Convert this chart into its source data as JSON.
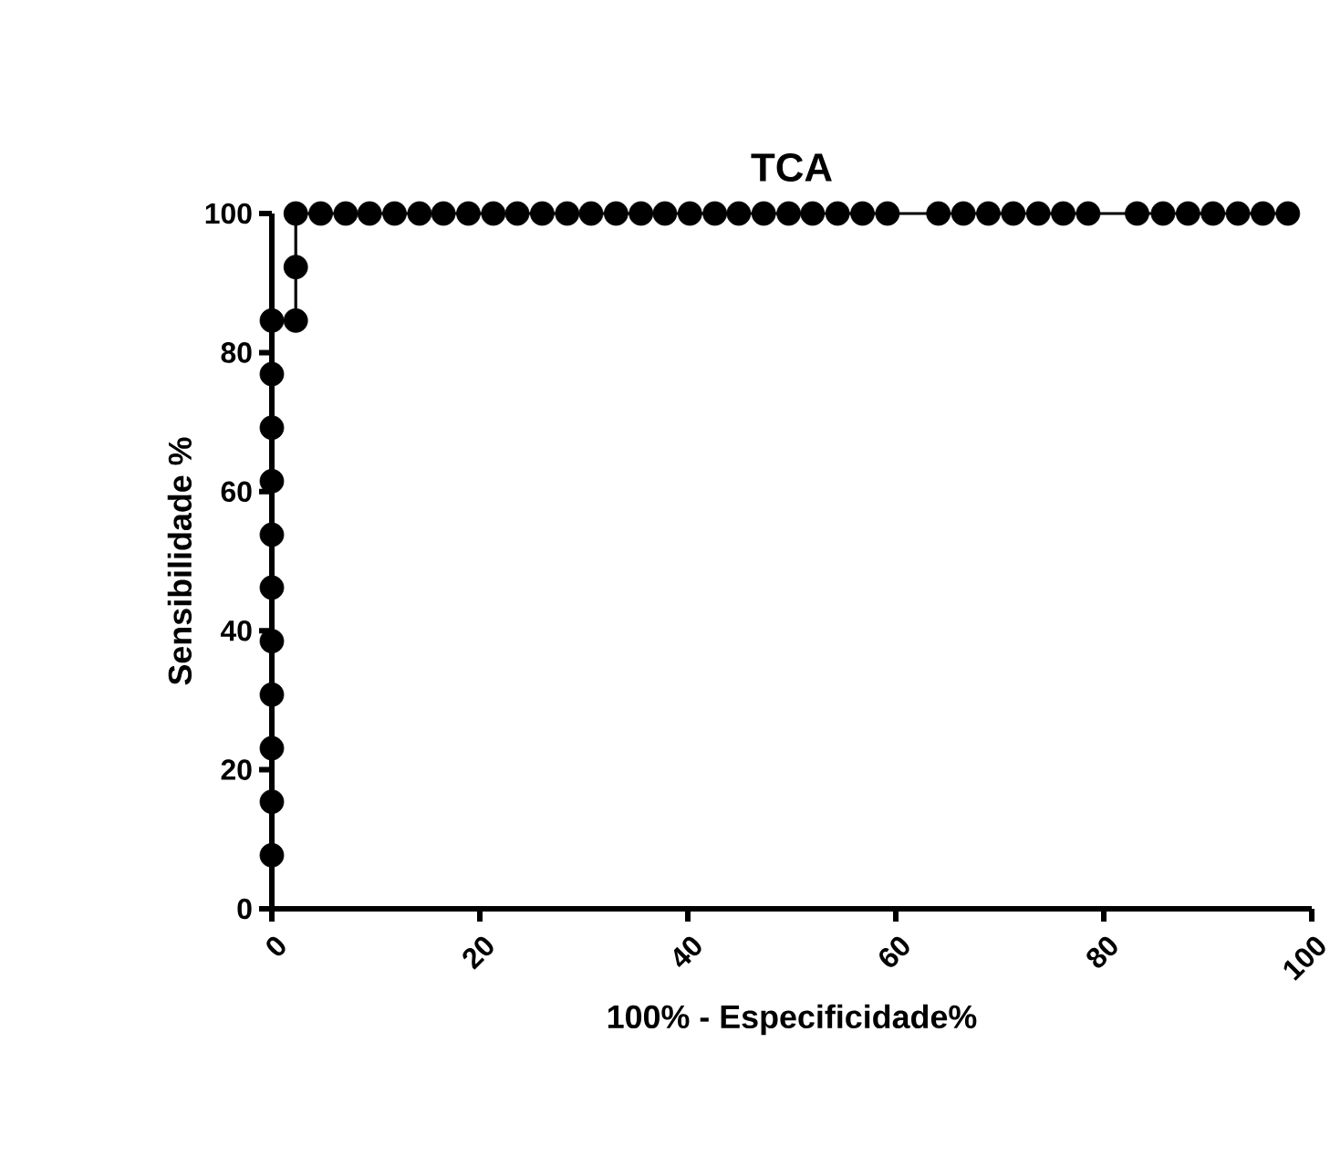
{
  "chart_data": {
    "type": "line",
    "title": "TCA",
    "xlabel": "100% - Especificidade%",
    "ylabel": "Sensibilidade %",
    "xlim": [
      0,
      100
    ],
    "ylim": [
      0,
      100
    ],
    "xticks": [
      0,
      20,
      40,
      60,
      80,
      100
    ],
    "yticks": [
      0,
      20,
      40,
      60,
      80,
      100
    ],
    "marker": "circle",
    "line_style": "solid",
    "series": [
      {
        "color": "#000000",
        "x": [
          0,
          0,
          0,
          0,
          0,
          0,
          0,
          0,
          0,
          0,
          0,
          2.3,
          2.3,
          2.3,
          4.7,
          7.1,
          9.4,
          11.8,
          14.2,
          16.5,
          18.9,
          21.3,
          23.6,
          26.0,
          28.4,
          30.7,
          33.1,
          35.5,
          37.8,
          40.2,
          42.6,
          44.9,
          47.3,
          49.7,
          52.0,
          54.4,
          56.8,
          59.2,
          64.1,
          66.5,
          68.9,
          71.3,
          73.7,
          76.1,
          78.5,
          83.2,
          85.7,
          88.1,
          90.5,
          92.9,
          95.3,
          97.7
        ],
        "values": [
          7.7,
          15.4,
          23.1,
          30.8,
          38.5,
          46.2,
          53.8,
          61.5,
          69.2,
          76.9,
          84.6,
          84.6,
          92.3,
          100,
          100,
          100,
          100,
          100,
          100,
          100,
          100,
          100,
          100,
          100,
          100,
          100,
          100,
          100,
          100,
          100,
          100,
          100,
          100,
          100,
          100,
          100,
          100,
          100,
          100,
          100,
          100,
          100,
          100,
          100,
          100,
          100,
          100,
          100,
          100,
          100,
          100,
          100
        ]
      }
    ]
  }
}
